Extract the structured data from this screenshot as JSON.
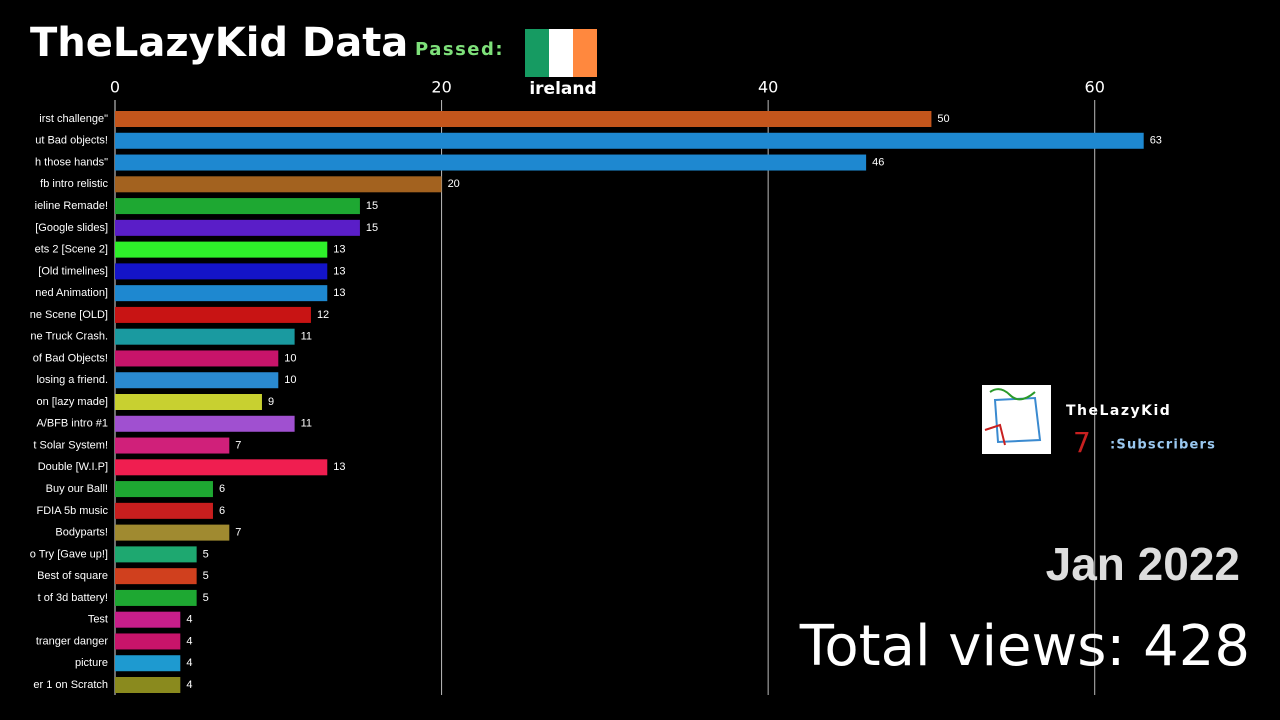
{
  "chart_data": {
    "type": "bar",
    "title": "TheLazyKid Data",
    "categories": [
      "irst challenge\"",
      "ut Bad objects!",
      "h those hands\"",
      "fb intro relistic",
      "ieline Remade!",
      "[Google slides]",
      "ets 2 [Scene 2]",
      "[Old timelines]",
      "ned Animation]",
      "ne Scene [OLD]",
      "ne Truck Crash.",
      "of Bad Objects!",
      "losing a friend.",
      "on [lazy made]",
      "A/BFB intro #1",
      "t Solar System!",
      "Double [W.I.P]",
      "Buy our Ball!",
      "FDIA 5b music",
      "Bodyparts!",
      "o Try [Gave up!]",
      "Best of square",
      "t of 3d battery!",
      "Test",
      "tranger danger",
      "picture",
      "er 1 on Scratch"
    ],
    "values": [
      50,
      63,
      46,
      20,
      15,
      15,
      13,
      13,
      13,
      12,
      11,
      10,
      10,
      9,
      11,
      7,
      13,
      6,
      6,
      7,
      5,
      5,
      5,
      4,
      4,
      4,
      4
    ],
    "colors": [
      "#c4561c",
      "#1e88d0",
      "#1e88d0",
      "#a3621f",
      "#1ea832",
      "#5a1ec8",
      "#2ef02a",
      "#1414c8",
      "#1e88d0",
      "#c81414",
      "#1a9aa0",
      "#c8146a",
      "#2a8ad0",
      "#c8d030",
      "#a050d0",
      "#d0207a",
      "#f01e50",
      "#1ea832",
      "#c81e1e",
      "#a08a30",
      "#1ea870",
      "#d0401e",
      "#1ea832",
      "#c81e8a",
      "#c8146a",
      "#1e9ad0",
      "#8a8a1e"
    ],
    "xlim": [
      0,
      70
    ],
    "xticks": [
      0,
      20,
      40,
      60
    ],
    "grid": true,
    "passed_label": "Passed:",
    "passed_name": "ireland",
    "channel_name": "TheLazyKid",
    "subscribers": 7,
    "subscribers_label": ":Subscribers",
    "date": "Jan 2022",
    "total_views": "Total views: 428"
  }
}
